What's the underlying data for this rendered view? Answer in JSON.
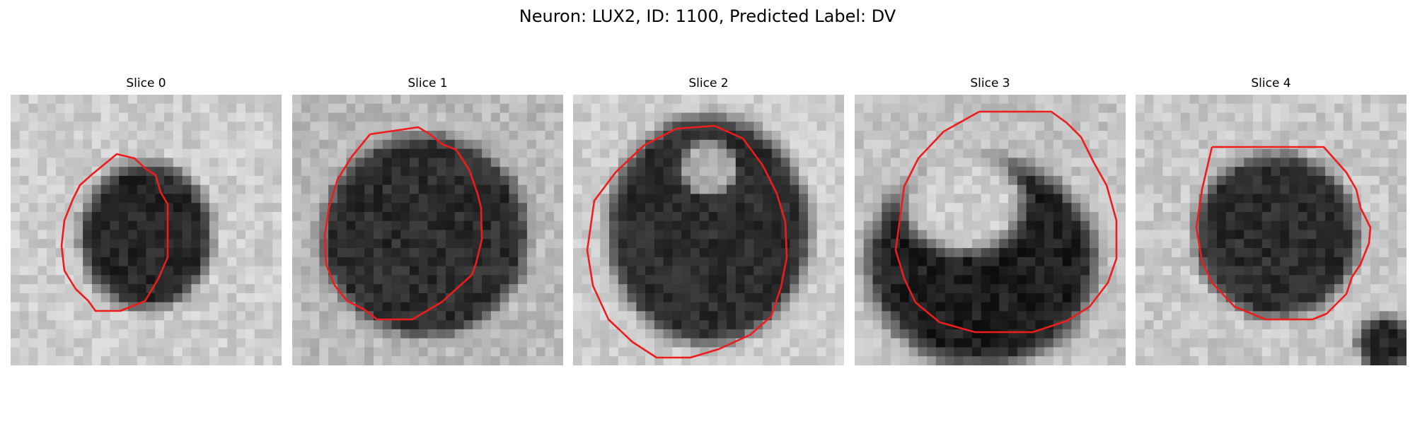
{
  "figure": {
    "title": "Neuron: LUX2, ID: 1100, Predicted Label: DV"
  },
  "panels": [
    {
      "title": "Slice 0"
    },
    {
      "title": "Slice 1"
    },
    {
      "title": "Slice 2"
    },
    {
      "title": "Slice 3"
    },
    {
      "title": "Slice 4"
    }
  ],
  "colors": {
    "contour": "#ee1c1c",
    "background": "#ffffff"
  }
}
